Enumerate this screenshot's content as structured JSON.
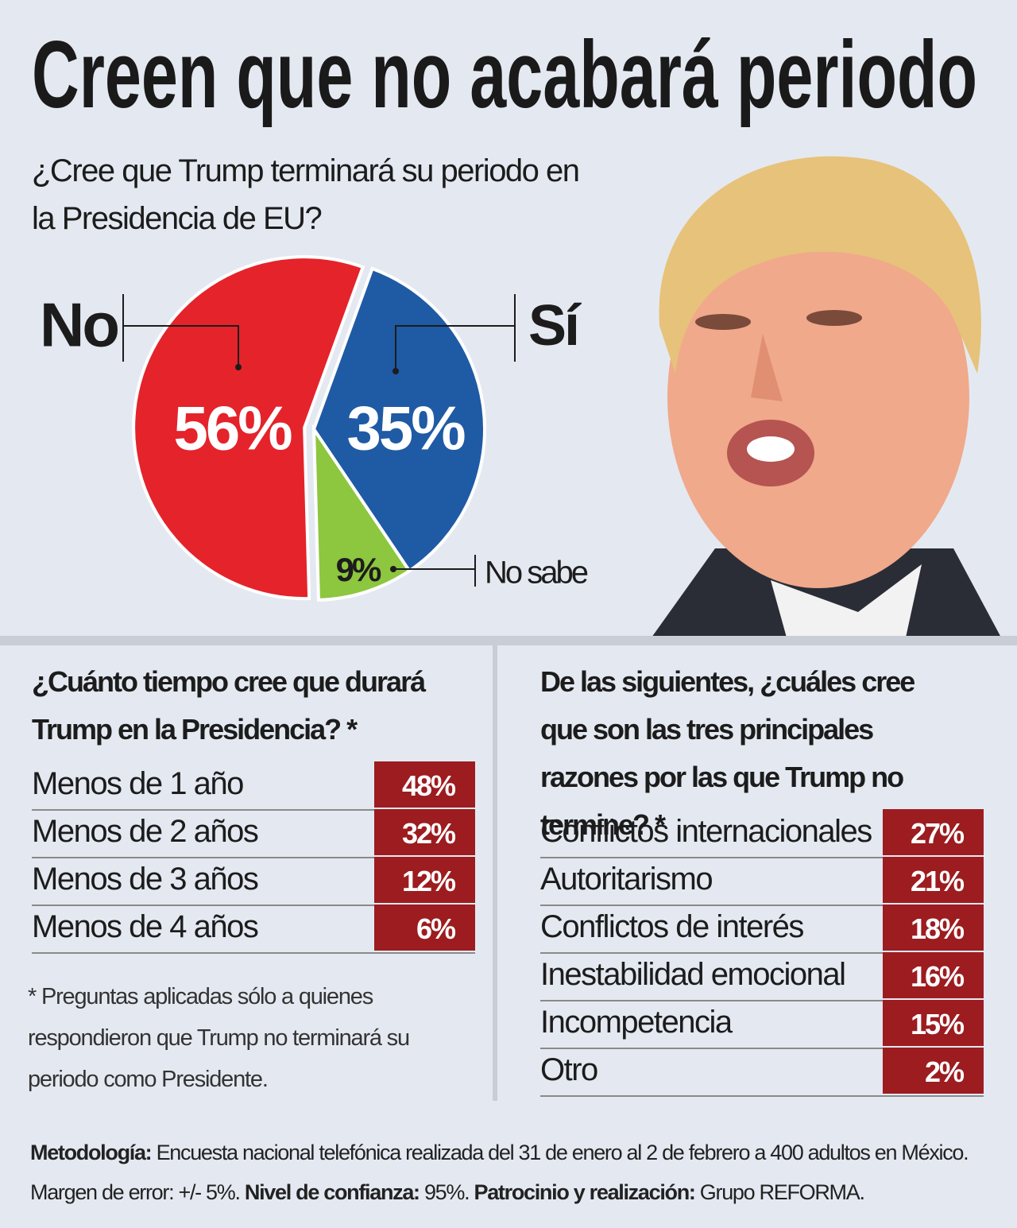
{
  "title": "Creen que no acabará periodo",
  "chart_data": [
    {
      "type": "pie",
      "title": "¿Cree que Trump terminará su periodo en la Presidencia de EU?",
      "categories": [
        "No",
        "Sí",
        "No sabe"
      ],
      "values": [
        56,
        35,
        9
      ],
      "value_labels": [
        "56%",
        "35%",
        "9%"
      ],
      "colors": [
        "#e4232b",
        "#1f5aa5",
        "#8dc63f"
      ]
    },
    {
      "type": "table",
      "title": "¿Cuánto tiempo cree que durará Trump en la Presidencia? *",
      "categories": [
        "Menos de 1 año",
        "Menos de 2 años",
        "Menos de 3 años",
        "Menos de 4 años"
      ],
      "values": [
        48,
        32,
        12,
        6
      ],
      "value_labels": [
        "48%",
        "32%",
        "12%",
        "6%"
      ],
      "color": "#9c1c20"
    },
    {
      "type": "table",
      "title": "De las siguientes, ¿cuáles cree que son las tres principales razones por las que Trump no termine? *",
      "categories": [
        "Conflictos internacionales",
        "Autoritarismo",
        "Conflictos de interés",
        "Inestabilidad emocional",
        "Incompetencia",
        "Otro"
      ],
      "values": [
        27,
        21,
        18,
        16,
        15,
        2
      ],
      "value_labels": [
        "27%",
        "21%",
        "18%",
        "16%",
        "15%",
        "2%"
      ],
      "color": "#9c1c20"
    }
  ],
  "footnote": "* Preguntas aplicadas sólo a quienes respondieron que Trump no terminará su periodo como Presidente.",
  "methodology": [
    "Metodología:",
    "Encuesta nacional telefónica realizada del 31 de enero al 2 de febrero a 400 adultos en México. Margen de error: +/- 5%.",
    "Nivel de confianza:",
    "95%.",
    "Patrocinio y realización:",
    "Grupo REFORMA."
  ]
}
